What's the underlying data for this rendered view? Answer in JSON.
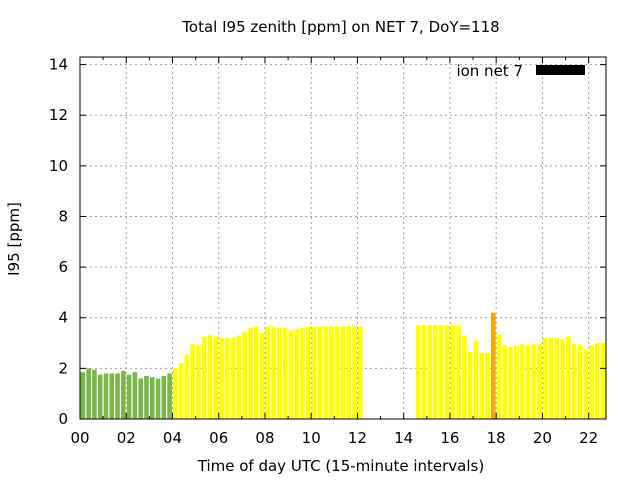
{
  "chart_data": {
    "type": "bar",
    "title": "Total I95 zenith [ppm] on NET 7, DoY=118",
    "xlabel": "Time of day UTC (15-minute intervals)",
    "ylabel": "I95 [ppm]",
    "xlim": [
      0,
      22.75
    ],
    "ylim": [
      0,
      14.3
    ],
    "xticks": [
      "00",
      "02",
      "04",
      "06",
      "08",
      "10",
      "12",
      "14",
      "16",
      "18",
      "20",
      "22"
    ],
    "yticks": [
      "0",
      "2",
      "4",
      "6",
      "8",
      "10",
      "12",
      "14"
    ],
    "grid": true,
    "legend": {
      "label": "ion net 7",
      "color": "#000000",
      "position": "top-right"
    },
    "colors": {
      "low": "#7ab648",
      "medium": "#ffff00",
      "high": "#ffa500"
    },
    "bar_width_hours": 0.25,
    "series": [
      {
        "x": [
          0.0,
          0.25,
          0.5,
          0.75,
          1.0,
          1.25,
          1.5,
          1.75,
          2.0,
          2.25,
          2.5,
          2.75,
          3.0,
          3.25,
          3.5,
          3.75,
          4.0,
          4.25,
          4.5,
          4.75,
          5.0,
          5.25,
          5.5,
          5.75,
          6.0,
          6.25,
          6.5,
          6.75,
          7.0,
          7.25,
          7.5,
          7.75,
          8.0,
          8.25,
          8.5,
          8.75,
          9.0,
          9.25,
          9.5,
          9.75,
          10.0,
          10.25,
          10.5,
          10.75,
          11.0,
          11.25,
          11.5,
          11.75,
          12.0,
          14.5,
          14.75,
          15.0,
          15.25,
          15.5,
          15.75,
          16.0,
          16.25,
          16.5,
          16.75,
          17.0,
          17.25,
          17.5,
          17.75,
          18.0,
          18.25,
          18.5,
          18.75,
          19.0,
          19.25,
          19.5,
          19.75,
          20.0,
          20.25,
          20.5,
          20.75,
          21.0,
          21.25,
          21.5,
          21.75,
          22.0,
          22.25,
          22.5
        ],
        "values": [
          1.85,
          2.0,
          1.95,
          1.75,
          1.8,
          1.8,
          1.8,
          1.9,
          1.75,
          1.85,
          1.6,
          1.7,
          1.65,
          1.6,
          1.7,
          1.8,
          2.0,
          2.2,
          2.55,
          2.95,
          2.9,
          3.25,
          3.3,
          3.25,
          3.2,
          3.2,
          3.2,
          3.3,
          3.45,
          3.6,
          3.65,
          3.4,
          3.65,
          3.65,
          3.6,
          3.6,
          3.5,
          3.55,
          3.6,
          3.65,
          3.65,
          3.65,
          3.65,
          3.65,
          3.65,
          3.65,
          3.65,
          3.65,
          3.65,
          3.7,
          3.7,
          3.7,
          3.7,
          3.7,
          3.7,
          3.7,
          3.7,
          3.3,
          2.65,
          3.1,
          2.6,
          2.6,
          4.2,
          3.35,
          2.9,
          2.85,
          2.9,
          2.95,
          2.9,
          2.95,
          2.95,
          3.2,
          3.2,
          3.2,
          3.15,
          3.25,
          2.95,
          2.95,
          2.75,
          2.9,
          3.0,
          3.0
        ],
        "levels": [
          "low",
          "low",
          "low",
          "low",
          "low",
          "low",
          "low",
          "low",
          "low",
          "low",
          "low",
          "low",
          "low",
          "low",
          "low",
          "low",
          "medium",
          "medium",
          "medium",
          "medium",
          "medium",
          "medium",
          "medium",
          "medium",
          "medium",
          "medium",
          "medium",
          "medium",
          "medium",
          "medium",
          "medium",
          "medium",
          "medium",
          "medium",
          "medium",
          "medium",
          "medium",
          "medium",
          "medium",
          "medium",
          "medium",
          "medium",
          "medium",
          "medium",
          "medium",
          "medium",
          "medium",
          "medium",
          "medium",
          "medium",
          "medium",
          "medium",
          "medium",
          "medium",
          "medium",
          "medium",
          "medium",
          "medium",
          "medium",
          "medium",
          "medium",
          "medium",
          "high",
          "medium",
          "medium",
          "medium",
          "medium",
          "medium",
          "medium",
          "medium",
          "medium",
          "medium",
          "medium",
          "medium",
          "medium",
          "medium",
          "medium",
          "medium",
          "medium",
          "medium",
          "medium",
          "medium"
        ]
      }
    ]
  }
}
